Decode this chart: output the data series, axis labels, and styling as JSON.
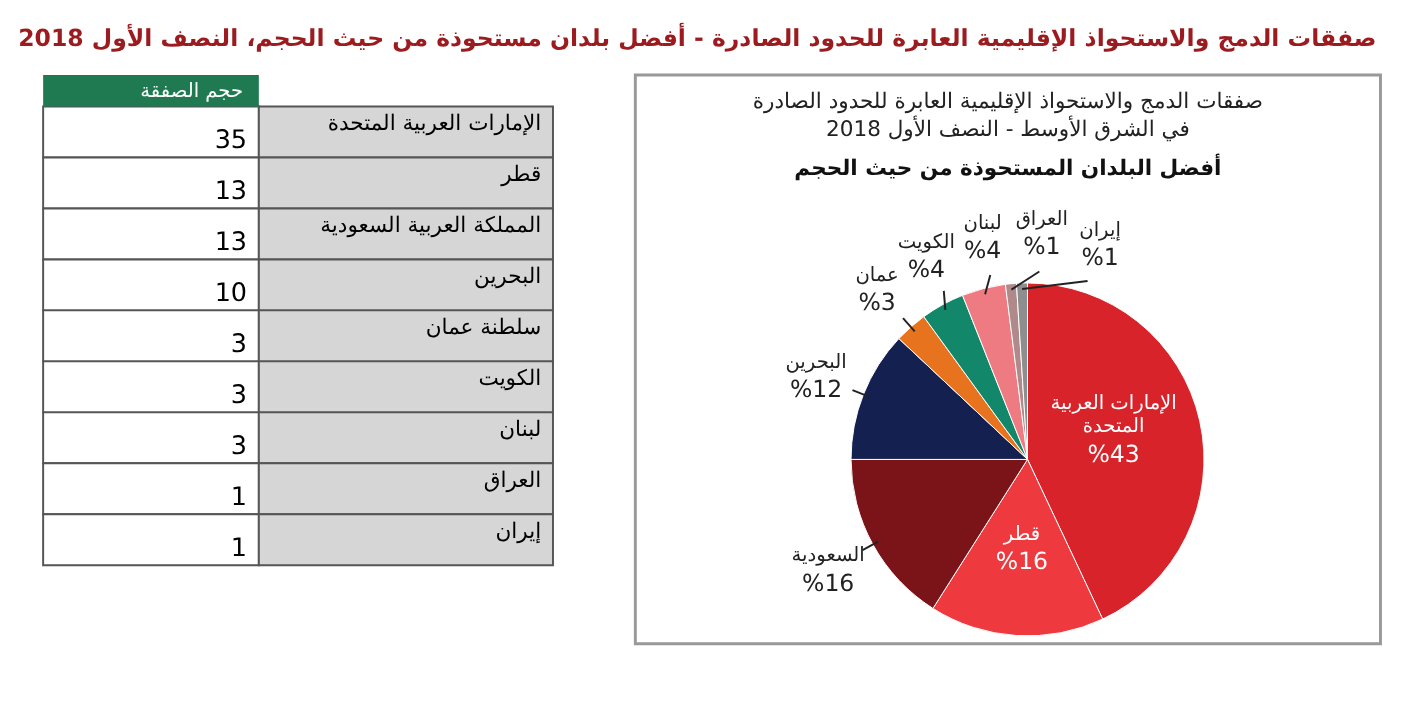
{
  "chart_data": [
    {
      "type": "other",
      "title": "صفقات الدمج والاستحواذ الإقليمية العابرة للحدود الصادرة -  أفضل بلدان مستحوذة من حيث الحجم، النصف الأول 2018",
      "xlabel": "حجم الصفقة",
      "categories": [
        "الإمارات العربية المتحدة",
        "قطر",
        "المملكة العربية السعودية",
        "البحرين",
        "سلطنة عمان",
        "الكويت",
        "لبنان",
        "العراق",
        "إيران"
      ],
      "values": [
        35,
        13,
        13,
        10,
        3,
        3,
        3,
        1,
        1
      ],
      "data_labels": true
    },
    {
      "type": "pie",
      "title": "صفقات الدمج والاستحواذ الإقليمية العابرة للحدود الصادرة في الشرق الأوسط -  النصف الأول 2018",
      "subtitle": "أفضل البلدان المستحوذة من حيث الحجم",
      "categories": [
        "الإمارات العربية المتحدة",
        "قطر",
        "السعودية",
        "البحرين",
        "عمان",
        "الكويت",
        "لبنان",
        "العراق",
        "إيران"
      ],
      "values": [
        43,
        16,
        16,
        12,
        3,
        4,
        4,
        1,
        1
      ],
      "colors": [
        "#d8232a",
        "#ee3a3f",
        "#7a1418",
        "#14204f",
        "#e8731f",
        "#13876a",
        "#ee7b82",
        "#b0898b",
        "#8e8e8e"
      ],
      "value_labels": [
        "%43",
        "%16",
        "%16",
        "%12",
        "%3",
        "%4",
        "%4",
        "%1",
        "%1"
      ]
    }
  ]
}
